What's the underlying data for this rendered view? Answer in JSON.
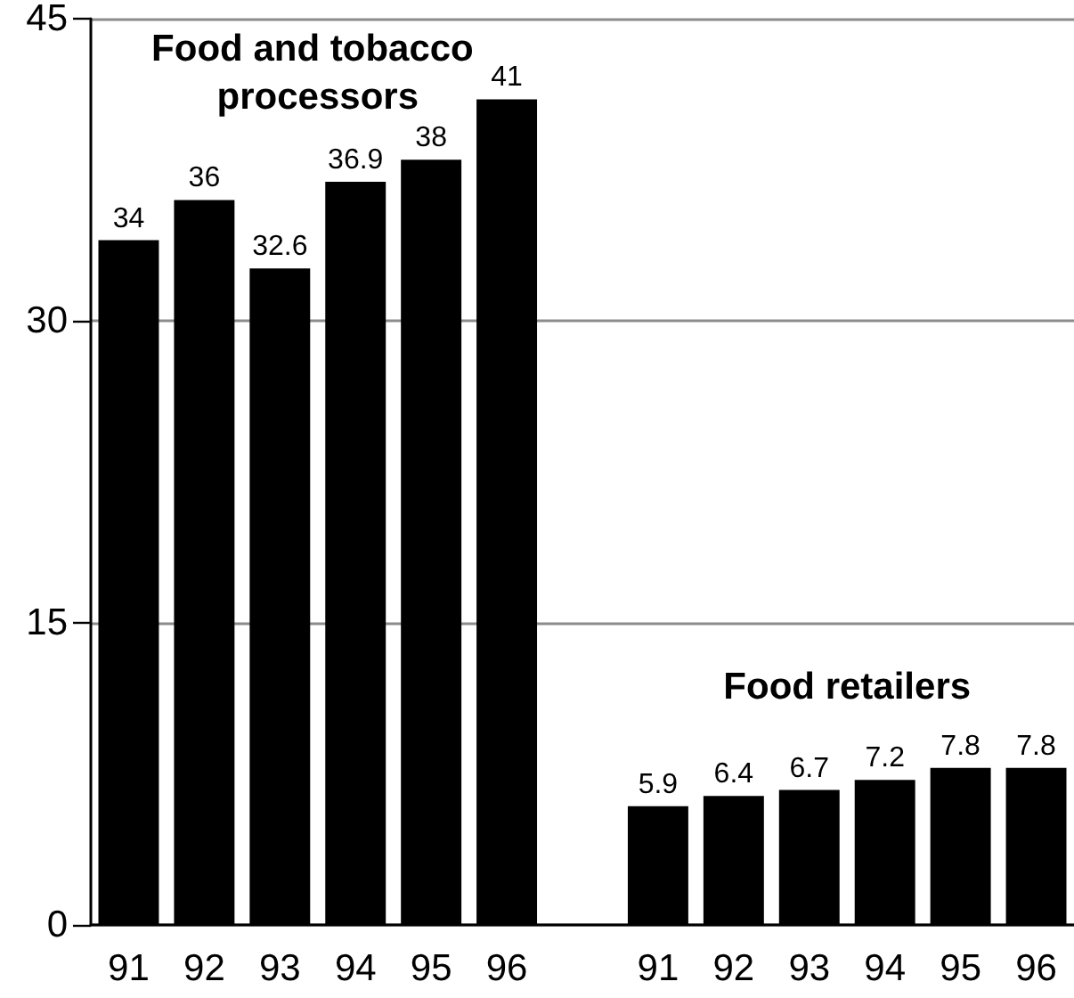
{
  "chart_data": {
    "type": "bar",
    "categories": [
      "91",
      "92",
      "93",
      "94",
      "95",
      "96",
      null,
      "91",
      "92",
      "93",
      "94",
      "95",
      "96"
    ],
    "values": [
      34,
      36,
      32.6,
      36.9,
      38,
      41,
      null,
      5.9,
      6.4,
      6.7,
      7.2,
      7.8,
      7.8
    ],
    "color": "#000000",
    "ylim": [
      0,
      45
    ],
    "yticks": [
      0,
      15,
      30,
      45
    ],
    "grid": "y",
    "data_labels": true,
    "annotations": [
      "Food and tobacco processors",
      "Food retailers"
    ]
  }
}
